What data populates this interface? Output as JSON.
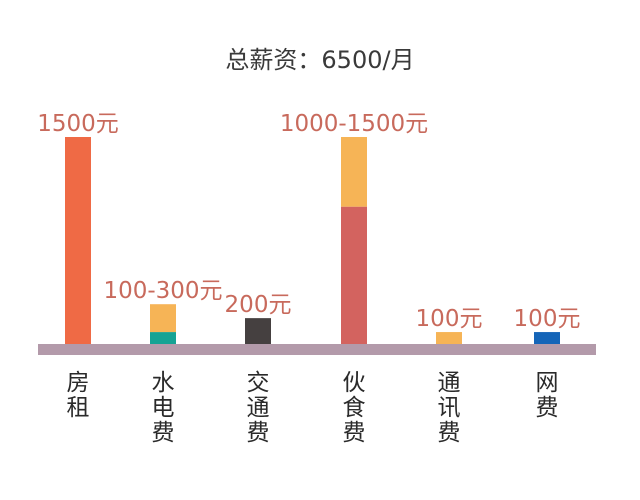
{
  "chart_data": {
    "type": "bar",
    "title": "总薪资：6500/月",
    "xlabel": "",
    "ylabel": "",
    "ylim": [
      0,
      1500
    ],
    "grid": false,
    "baseline_color": "#b39aaa",
    "categories": [
      "房租",
      "水电费",
      "交通费",
      "伙食费",
      "通讯费",
      "网费"
    ],
    "bars": [
      {
        "category": "房租",
        "min": 1500,
        "max": 1500,
        "label": "1500元",
        "colors": {
          "base": "#ef6a45",
          "range": "#f6b456"
        }
      },
      {
        "category": "水电费",
        "min": 100,
        "max": 300,
        "label": "100-300元",
        "colors": {
          "base": "#16a394",
          "range": "#f6b456"
        }
      },
      {
        "category": "交通费",
        "min": 200,
        "max": 200,
        "label": "200元",
        "colors": {
          "base": "#454040",
          "range": "#f6b456"
        }
      },
      {
        "category": "伙食费",
        "min": 1000,
        "max": 1500,
        "label": "1000-1500元",
        "colors": {
          "base": "#d3635f",
          "range": "#f6b456"
        }
      },
      {
        "category": "通讯费",
        "min": 100,
        "max": 100,
        "label": "100元",
        "colors": {
          "base": "#f6b456",
          "range": "#f6b456"
        }
      },
      {
        "category": "网费",
        "min": 100,
        "max": 100,
        "label": "100元",
        "colors": {
          "base": "#1565b8",
          "range": "#f6b456"
        }
      }
    ]
  }
}
